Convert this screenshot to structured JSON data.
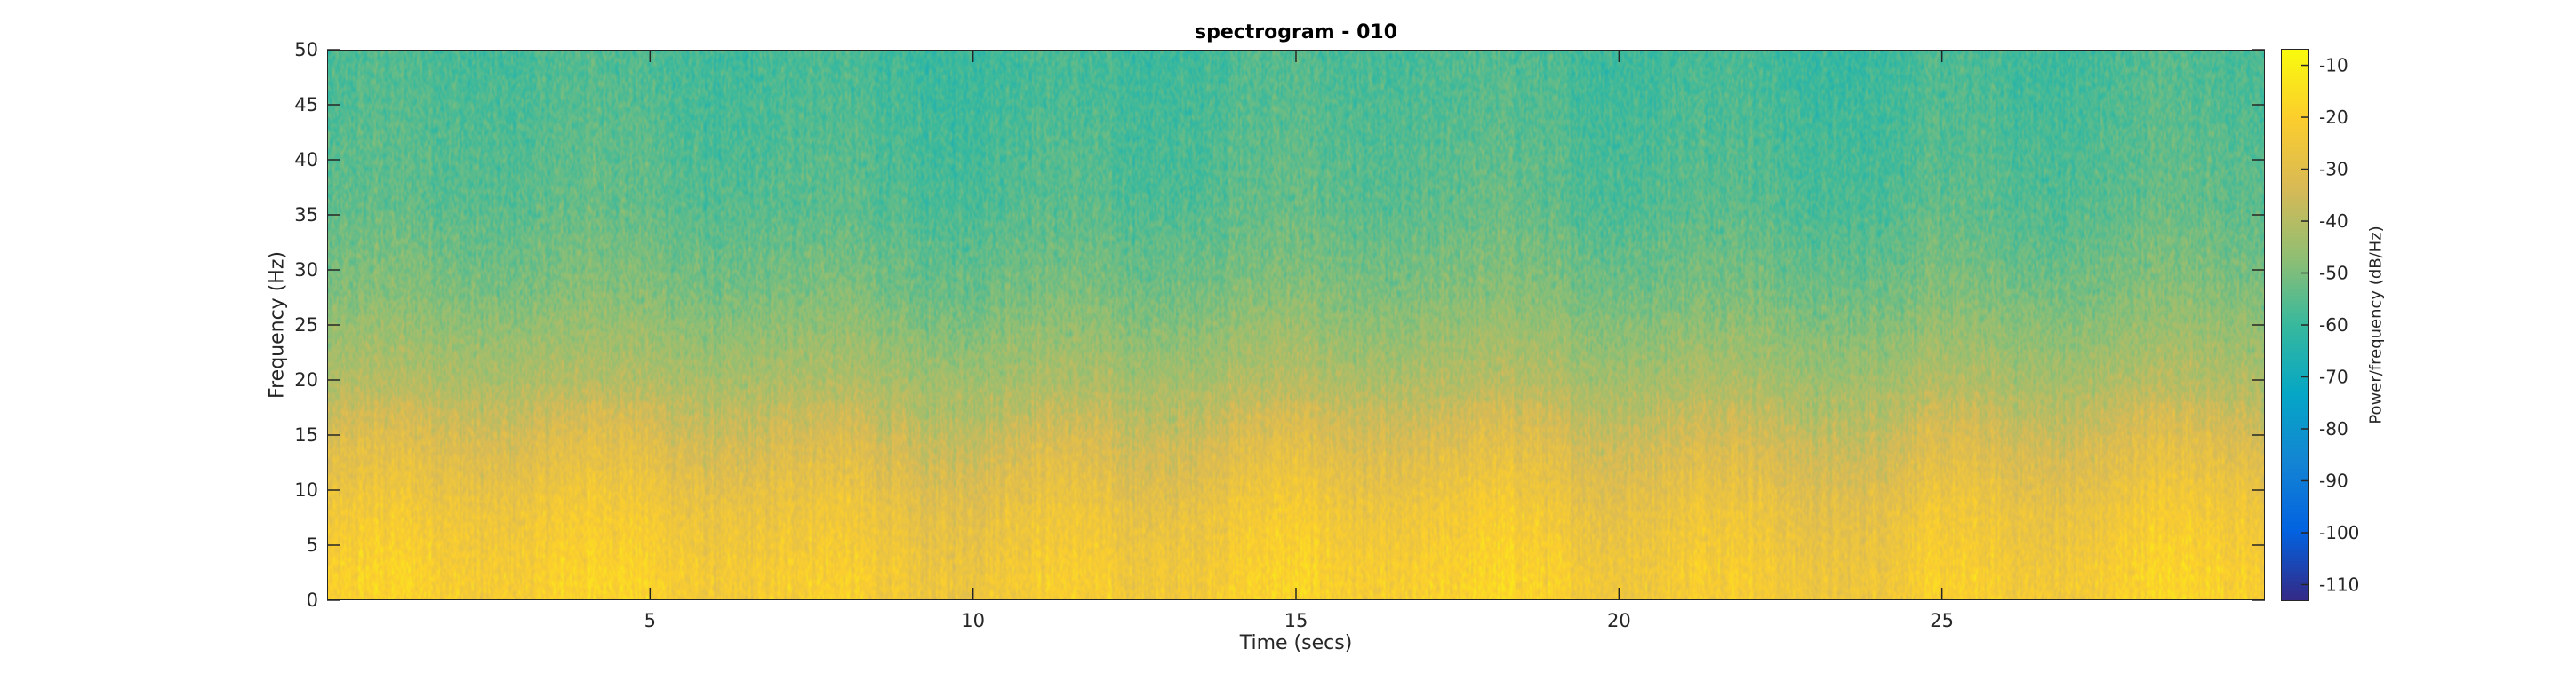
{
  "chart_data": {
    "type": "heatmap",
    "title": "spectrogram - 010",
    "xlabel": "Time (secs)",
    "ylabel": "Frequency (Hz)",
    "xlim": [
      0,
      30
    ],
    "ylim": [
      0,
      50
    ],
    "xticks": [
      5,
      10,
      15,
      20,
      25
    ],
    "yticks": [
      0,
      5,
      10,
      15,
      20,
      25,
      30,
      35,
      40,
      45,
      50
    ],
    "colorbar": {
      "label": "Power/frequency (dB/Hz)",
      "range": [
        -113,
        -7
      ],
      "ticks": [
        -10,
        -20,
        -30,
        -40,
        -50,
        -60,
        -70,
        -80,
        -90,
        -100,
        -110
      ],
      "colormap": "parula"
    },
    "power_profile": {
      "description_values_db": [
        {
          "freq_hz": 2,
          "power_db": -22
        },
        {
          "freq_hz": 8,
          "power_db": -26
        },
        {
          "freq_hz": 14,
          "power_db": -33
        },
        {
          "freq_hz": 20,
          "power_db": -42
        },
        {
          "freq_hz": 28,
          "power_db": -50
        },
        {
          "freq_hz": 36,
          "power_db": -55
        },
        {
          "freq_hz": 45,
          "power_db": -57
        },
        {
          "freq_hz": 50,
          "power_db": -58
        }
      ]
    },
    "colors": {
      "parula_stops": [
        "#352a87",
        "#0363e1",
        "#1485d4",
        "#06a7c6",
        "#38b99e",
        "#92bf73",
        "#d9ba56",
        "#fcce2e",
        "#f9fb0e"
      ]
    }
  }
}
